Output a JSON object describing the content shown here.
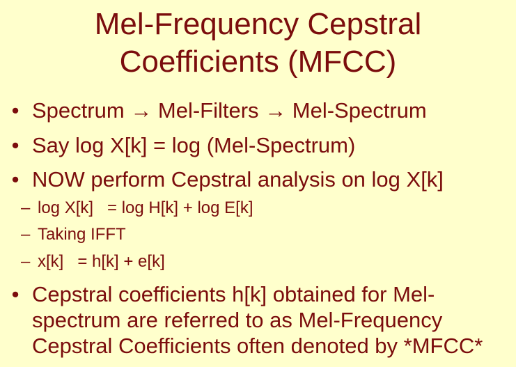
{
  "title": {
    "line1": "Mel-Frequency Cepstral",
    "line2": "Coefficients (MFCC)"
  },
  "bullets": [
    {
      "symbol": "•",
      "text": "Spectrum → Mel-Filters → Mel-Spectrum"
    },
    {
      "symbol": "•",
      "text": "Say log X[k] = log (Mel-Spectrum)"
    },
    {
      "symbol": "•",
      "text": "NOW perform Cepstral analysis on log X[k]"
    }
  ],
  "subbullets": [
    {
      "symbol": "–",
      "text": "log X[k]   = log H[k] + log E[k]"
    },
    {
      "symbol": "–",
      "text": "Taking IFFT"
    },
    {
      "symbol": "–",
      "text": "x[k]   = h[k] + e[k]"
    }
  ],
  "final_bullet": {
    "symbol": "•",
    "line1": "Cepstral coefficients h[k] obtained for Mel-",
    "line2": "spectrum are referred to as Mel-Frequency",
    "line3": "Cepstral Coefficients often denoted by *MFCC*"
  },
  "colors": {
    "background": "#FFFFCC",
    "text": "#7B0D0D"
  }
}
